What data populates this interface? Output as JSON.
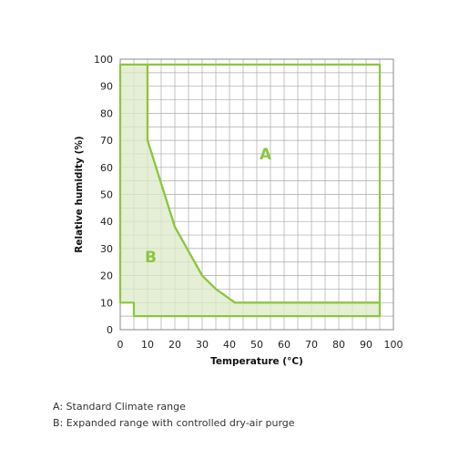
{
  "chart_data": {
    "type": "area",
    "xlabel": "Temperature (°C)",
    "ylabel": "Relative humidity (%)",
    "xlim": [
      0,
      100
    ],
    "ylim": [
      0,
      100
    ],
    "x_ticks": [
      0,
      10,
      20,
      30,
      40,
      50,
      60,
      70,
      80,
      90,
      100
    ],
    "y_ticks": [
      0,
      10,
      20,
      30,
      40,
      50,
      60,
      70,
      80,
      90,
      100
    ],
    "grid": true,
    "regions": [
      {
        "id": "A",
        "label": "A",
        "boundary": [
          [
            10,
            98
          ],
          [
            95,
            98
          ],
          [
            95,
            10
          ],
          [
            42,
            10
          ],
          [
            35,
            15
          ],
          [
            30,
            20
          ],
          [
            20,
            38
          ],
          [
            10,
            70
          ],
          [
            10,
            98
          ]
        ],
        "label_pos": [
          51,
          63
        ]
      },
      {
        "id": "B",
        "label": "B",
        "boundary": [
          [
            0,
            98
          ],
          [
            10,
            98
          ],
          [
            10,
            70
          ],
          [
            20,
            38
          ],
          [
            30,
            20
          ],
          [
            35,
            15
          ],
          [
            42,
            10
          ],
          [
            95,
            10
          ],
          [
            95,
            5
          ],
          [
            5,
            5
          ],
          [
            5,
            10
          ],
          [
            0,
            10
          ],
          [
            0,
            98
          ]
        ],
        "label_pos": [
          9,
          25
        ]
      }
    ],
    "colors": {
      "line": "#8cc63f",
      "fill": "#dce9c7",
      "grid": "#aaaaaa",
      "label": "#8cc63f"
    }
  },
  "legend": {
    "a_text": "A: Standard Climate range",
    "b_text": "B: Expanded range with controlled dry-air purge"
  }
}
